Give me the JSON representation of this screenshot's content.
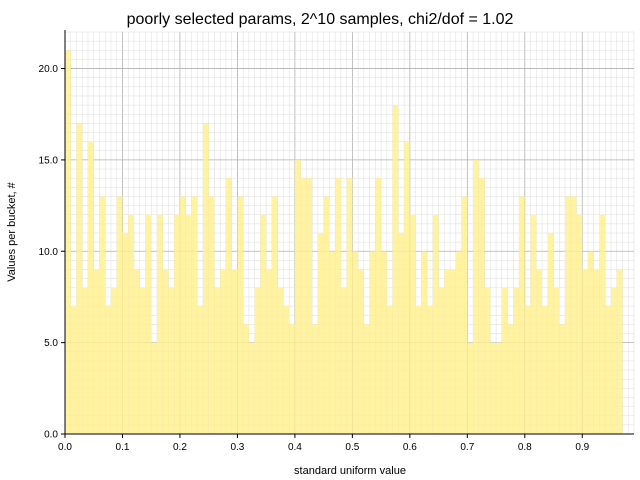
{
  "chart_data": {
    "type": "bar",
    "title": "poorly selected params, 2^10 samples, chi2/dof = 1.02",
    "xlabel": "standard uniform value",
    "ylabel": "Values per bucket, #",
    "xlim": [
      0.0,
      0.99
    ],
    "ylim": [
      0.0,
      22.0
    ],
    "bin_width": 0.01,
    "x_ticks": [
      "0.0",
      "0.1",
      "0.2",
      "0.3",
      "0.4",
      "0.5",
      "0.6",
      "0.7",
      "0.8",
      "0.9"
    ],
    "y_ticks": [
      "0.0",
      "5.0",
      "10.0",
      "15.0",
      "20.0"
    ],
    "grid": true,
    "bar_color": "#fff08f",
    "values": [
      21,
      7,
      17,
      8,
      16,
      9,
      13,
      7,
      8,
      13,
      11,
      12,
      9,
      8,
      12,
      5,
      12,
      9,
      8,
      12,
      13,
      12,
      13,
      7,
      17,
      13,
      8,
      9,
      14,
      9,
      13,
      6,
      5,
      8,
      12,
      9,
      13,
      8,
      7,
      6,
      15,
      14,
      14,
      6,
      11,
      13,
      10,
      14,
      8,
      14,
      10,
      9,
      6,
      10,
      14,
      10,
      7,
      18,
      11,
      16,
      12,
      7,
      10,
      7,
      12,
      8,
      9,
      9,
      10,
      13,
      5,
      15,
      14,
      8,
      5,
      5,
      8,
      6,
      8,
      13,
      7,
      12,
      9,
      7,
      11,
      8,
      6,
      13,
      13,
      12,
      9,
      10,
      9,
      12,
      7,
      8,
      9
    ]
  }
}
